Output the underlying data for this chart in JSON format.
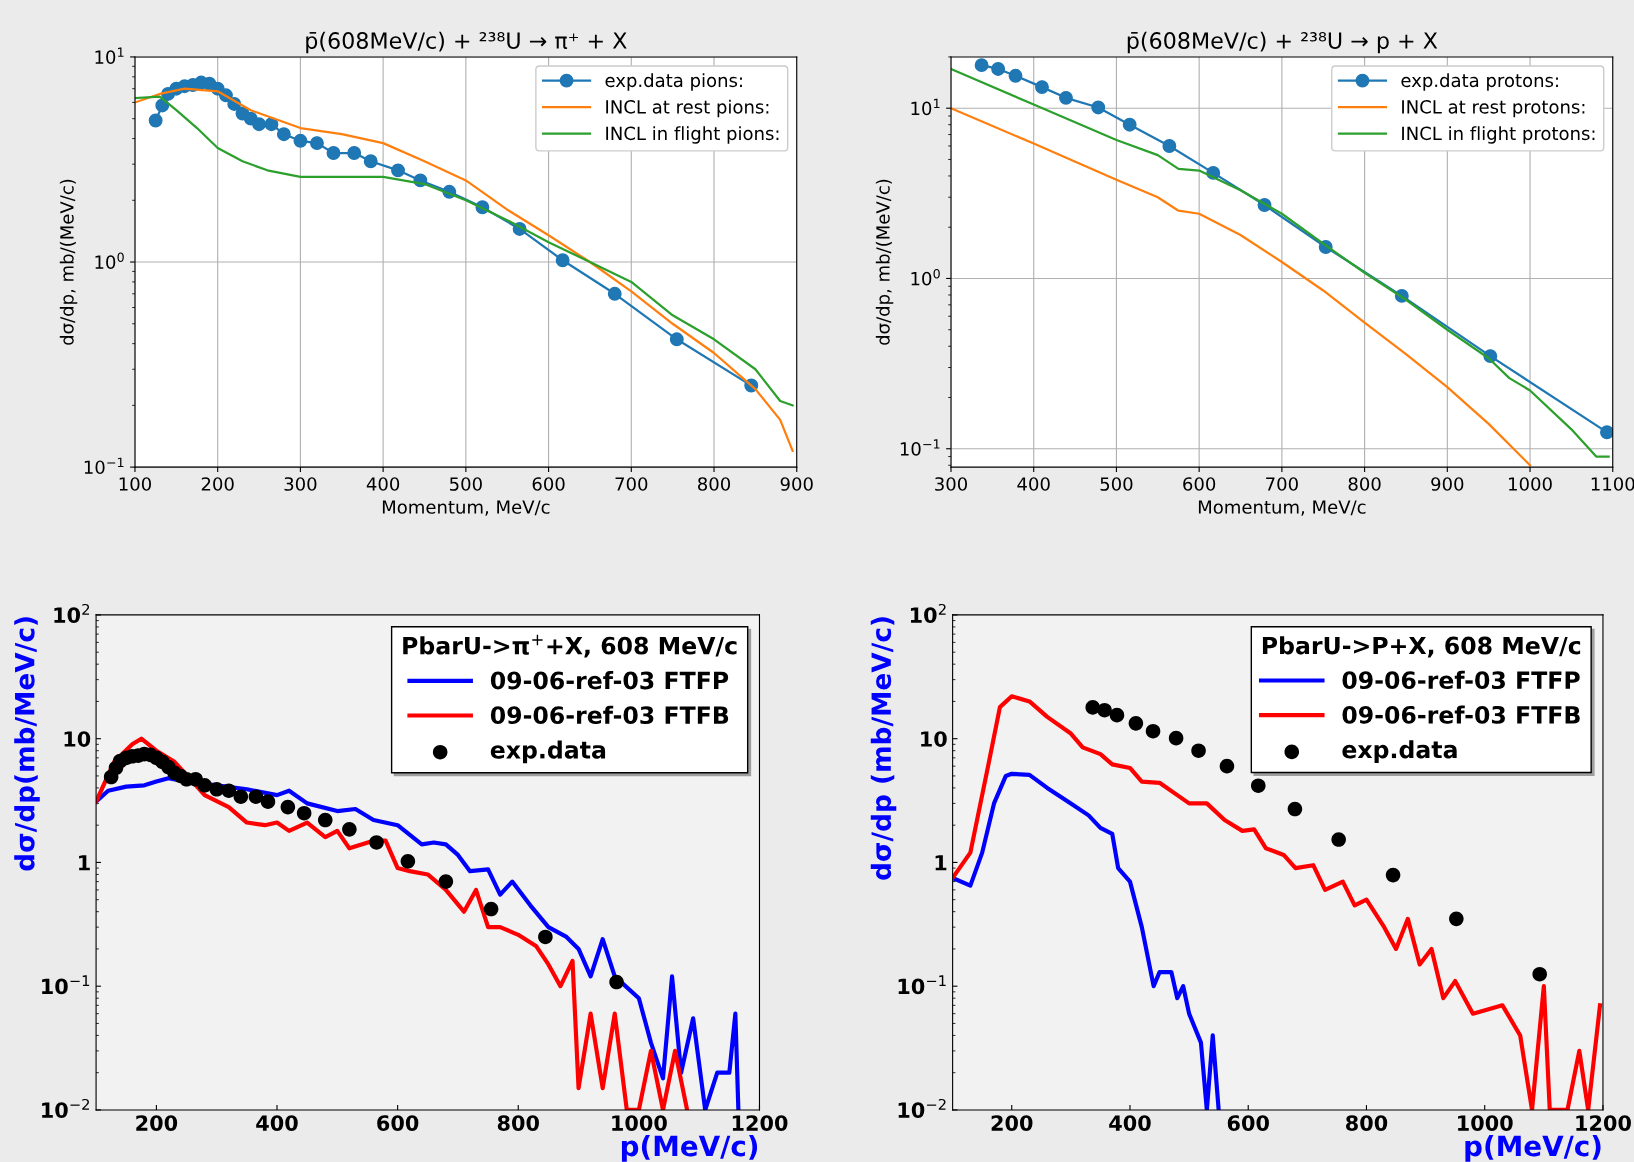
{
  "chart_data": [
    {
      "type": "line",
      "title": "p̄(608MeV/c) + ²³⁸U → π⁺ + X",
      "xlabel": "Momentum, MeV/c",
      "ylabel": "dσ/dp, mb/(MeV/c)",
      "log": true,
      "grid": true,
      "legend": "top right",
      "xlim": [
        100,
        900
      ],
      "xticks": [
        100,
        200,
        300,
        400,
        500,
        600,
        700,
        800,
        900
      ],
      "ylim": [
        0.1,
        10
      ],
      "yticks": [
        {
          "value": 0.1,
          "label": "10$^{−1}$"
        },
        {
          "value": 1,
          "label": "10$^{0}$"
        },
        {
          "value": 10,
          "label": "10$^{1}$"
        }
      ],
      "series": [
        {
          "name": "exp.data pions:",
          "color": "#1f77b4",
          "marker": "circle",
          "x": [
            125,
            133,
            140,
            150,
            160,
            170,
            180,
            190,
            200,
            210,
            220,
            230,
            240,
            250,
            265,
            280,
            300,
            320,
            340,
            365,
            385,
            418,
            445,
            480,
            520,
            565,
            617,
            680,
            755,
            845
          ],
          "values": [
            4.9,
            5.8,
            6.6,
            7.0,
            7.2,
            7.3,
            7.5,
            7.4,
            7.0,
            6.5,
            5.9,
            5.3,
            5.0,
            4.7,
            4.7,
            4.2,
            3.9,
            3.8,
            3.4,
            3.4,
            3.1,
            2.8,
            2.5,
            2.2,
            1.85,
            1.45,
            1.02,
            0.7,
            0.42,
            0.25
          ]
        },
        {
          "name": "INCL at rest pions:",
          "color": "#ff7f0e",
          "x": [
            100,
            130,
            160,
            200,
            240,
            300,
            350,
            400,
            450,
            500,
            550,
            600,
            650,
            700,
            750,
            800,
            850,
            880,
            895
          ],
          "values": [
            6.0,
            6.6,
            7.0,
            6.8,
            5.5,
            4.5,
            4.2,
            3.8,
            3.1,
            2.5,
            1.8,
            1.35,
            1.0,
            0.72,
            0.5,
            0.36,
            0.24,
            0.17,
            0.12
          ]
        },
        {
          "name": "INCL in flight pions:",
          "color": "#2ca02c",
          "x": [
            100,
            130,
            150,
            175,
            200,
            230,
            260,
            300,
            350,
            400,
            450,
            500,
            550,
            600,
            650,
            700,
            750,
            800,
            850,
            880,
            895
          ],
          "values": [
            6.3,
            6.4,
            5.5,
            4.5,
            3.6,
            3.1,
            2.8,
            2.6,
            2.6,
            2.6,
            2.4,
            2.0,
            1.6,
            1.25,
            1.0,
            0.8,
            0.55,
            0.42,
            0.3,
            0.21,
            0.2
          ]
        }
      ]
    },
    {
      "type": "line",
      "title": "p̄(608MeV/c) + ²³⁸U → p + X",
      "xlabel": "Momentum, MeV/c",
      "ylabel": "dσ/dp, mb/(MeV/c)",
      "log": true,
      "grid": true,
      "legend": "top right",
      "xlim": [
        300,
        1100
      ],
      "xticks": [
        300,
        400,
        500,
        600,
        700,
        800,
        900,
        1000,
        1100
      ],
      "ylim": [
        0.078,
        20
      ],
      "yticks": [
        {
          "value": 0.1,
          "label": "10$^{−1}$"
        },
        {
          "value": 1,
          "label": "10$^{0}$"
        },
        {
          "value": 10,
          "label": "10$^{1}$"
        }
      ],
      "series": [
        {
          "name": "exp.data protons:",
          "color": "#1f77b4",
          "marker": "circle",
          "x": [
            337,
            357,
            378,
            410,
            439,
            478,
            516,
            564,
            617,
            679,
            753,
            845,
            952,
            1093
          ],
          "values": [
            17.9,
            17.0,
            15.5,
            13.3,
            11.5,
            10.1,
            8.0,
            6.0,
            4.17,
            2.7,
            1.53,
            0.79,
            0.35,
            0.125
          ]
        },
        {
          "name": "INCL at rest protons:",
          "color": "#ff7f0e",
          "x": [
            300,
            400,
            500,
            550,
            575,
            600,
            650,
            700,
            750,
            800,
            850,
            900,
            950,
            1000
          ],
          "values": [
            10,
            6.2,
            3.8,
            3.0,
            2.5,
            2.4,
            1.8,
            1.25,
            0.85,
            0.55,
            0.36,
            0.23,
            0.14,
            0.08
          ]
        },
        {
          "name": "INCL in flight protons:",
          "color": "#2ca02c",
          "x": [
            300,
            400,
            500,
            550,
            575,
            600,
            650,
            700,
            750,
            800,
            850,
            900,
            950,
            975,
            1000,
            1050,
            1080,
            1095
          ],
          "values": [
            17,
            10.5,
            6.5,
            5.3,
            4.4,
            4.3,
            3.3,
            2.4,
            1.6,
            1.08,
            0.75,
            0.5,
            0.34,
            0.26,
            0.22,
            0.13,
            0.09,
            0.09
          ]
        }
      ]
    },
    {
      "type": "line",
      "xlabel": "p(MeV/c)",
      "ylabel": "dσ/dp(mb/MeV/c)",
      "legend_title": "PbarU->π$^{+}$+X, 608 MeV/c",
      "log": true,
      "legend": "top right",
      "xlim": [
        100,
        1200
      ],
      "xticks": [
        200,
        400,
        600,
        800,
        1000,
        1200
      ],
      "ylim": [
        0.01,
        100
      ],
      "yticks": [
        {
          "value": 0.01,
          "label": "10$^{−2}$"
        },
        {
          "value": 0.1,
          "label": "10$^{−1}$"
        },
        1,
        10,
        {
          "value": 100,
          "label": "10$^{2}$"
        }
      ],
      "series": [
        {
          "name": "09-06-ref-03 FTFP",
          "color": "#0000ff",
          "x": [
            100,
            120,
            150,
            180,
            200,
            220,
            250,
            300,
            350,
            400,
            420,
            450,
            500,
            530,
            560,
            600,
            640,
            660,
            680,
            700,
            720,
            750,
            770,
            790,
            820,
            850,
            880,
            900,
            920,
            940,
            960,
            1000,
            1020,
            1040,
            1055,
            1070,
            1090,
            1110,
            1130,
            1150,
            1160,
            1165
          ],
          "values": [
            3.1,
            3.8,
            4.1,
            4.2,
            4.5,
            4.8,
            4.5,
            4.2,
            3.9,
            3.5,
            3.8,
            3.0,
            2.6,
            2.7,
            2.2,
            2.0,
            1.4,
            1.45,
            1.4,
            1.15,
            0.85,
            0.88,
            0.55,
            0.7,
            0.45,
            0.3,
            0.25,
            0.2,
            0.12,
            0.24,
            0.12,
            0.08,
            0.035,
            0.018,
            0.12,
            0.02,
            0.055,
            0.01,
            0.02,
            0.02,
            0.06,
            0.01
          ]
        },
        {
          "name": "09-06-ref-03 FTFB",
          "color": "#ff0000",
          "x": [
            100,
            130,
            160,
            175,
            200,
            230,
            260,
            280,
            320,
            350,
            380,
            400,
            420,
            450,
            480,
            500,
            520,
            560,
            580,
            600,
            620,
            650,
            680,
            710,
            730,
            750,
            770,
            800,
            830,
            850,
            870,
            890,
            900,
            920,
            940,
            960,
            980,
            1000,
            1020,
            1040,
            1060,
            1080
          ],
          "values": [
            3.1,
            6.5,
            9,
            10,
            8,
            6.5,
            4.5,
            3.5,
            2.8,
            2.1,
            2.0,
            2.1,
            1.8,
            2.1,
            1.6,
            1.8,
            1.3,
            1.5,
            1.5,
            0.9,
            0.85,
            0.8,
            0.6,
            0.4,
            0.6,
            0.3,
            0.3,
            0.26,
            0.21,
            0.15,
            0.1,
            0.16,
            0.015,
            0.06,
            0.015,
            0.06,
            0.01,
            0.01,
            0.03,
            0.01,
            0.03,
            0.01
          ]
        },
        {
          "name": "exp.data",
          "type": "scatter",
          "marker": "circle",
          "color": "#000000",
          "x": [
            125,
            133,
            140,
            150,
            160,
            170,
            180,
            190,
            200,
            210,
            220,
            230,
            240,
            250,
            265,
            280,
            300,
            320,
            340,
            365,
            385,
            418,
            445,
            480,
            520,
            565,
            617,
            680,
            755,
            845,
            963
          ],
          "values": [
            4.9,
            5.8,
            6.6,
            7.0,
            7.2,
            7.3,
            7.5,
            7.4,
            7.0,
            6.5,
            5.9,
            5.3,
            5.0,
            4.7,
            4.7,
            4.2,
            3.9,
            3.8,
            3.4,
            3.4,
            3.1,
            2.8,
            2.5,
            2.2,
            1.85,
            1.45,
            1.02,
            0.7,
            0.42,
            0.25,
            0.108
          ]
        }
      ]
    },
    {
      "type": "line",
      "xlabel": "p(MeV/c)",
      "ylabel": "dσ/dp (mb/MeV/c)",
      "legend_title": "PbarU->P+X, 608 MeV/c",
      "log": true,
      "legend": "top right",
      "xlim": [
        100,
        1200
      ],
      "xticks": [
        200,
        400,
        600,
        800,
        1000,
        1200
      ],
      "ylim": [
        0.01,
        100
      ],
      "yticks": [
        {
          "value": 0.01,
          "label": "10$^{−2}$"
        },
        {
          "value": 0.1,
          "label": "10$^{−1}$"
        },
        1,
        10,
        {
          "value": 100,
          "label": "10$^{2}$"
        }
      ],
      "series": [
        {
          "name": "09-06-ref-03 FTFP",
          "color": "#0000ff",
          "x": [
            100,
            130,
            150,
            170,
            190,
            200,
            230,
            260,
            300,
            330,
            350,
            370,
            380,
            400,
            420,
            440,
            450,
            470,
            480,
            490,
            500,
            520,
            530,
            540,
            550
          ],
          "values": [
            0.75,
            0.65,
            1.2,
            3,
            5,
            5.2,
            5.1,
            4.0,
            3.0,
            2.4,
            1.9,
            1.7,
            0.9,
            0.7,
            0.3,
            0.1,
            0.13,
            0.13,
            0.08,
            0.1,
            0.06,
            0.035,
            0.01,
            0.04,
            0.01
          ]
        },
        {
          "name": "09-06-ref-03 FTFB",
          "color": "#ff0000",
          "x": [
            100,
            130,
            160,
            180,
            200,
            230,
            260,
            300,
            320,
            350,
            370,
            400,
            420,
            450,
            480,
            500,
            530,
            560,
            590,
            610,
            630,
            660,
            680,
            710,
            730,
            760,
            780,
            800,
            830,
            850,
            870,
            890,
            910,
            930,
            950,
            980,
            1030,
            1060,
            1080,
            1100,
            1110,
            1140,
            1160,
            1175,
            1195
          ],
          "values": [
            0.75,
            1.2,
            6,
            18,
            22,
            20,
            15,
            11,
            8.5,
            7.5,
            6.2,
            5.8,
            4.5,
            4.4,
            3.5,
            3.0,
            3.0,
            2.2,
            1.8,
            1.85,
            1.3,
            1.15,
            0.9,
            0.95,
            0.6,
            0.7,
            0.45,
            0.5,
            0.3,
            0.2,
            0.35,
            0.15,
            0.2,
            0.08,
            0.11,
            0.06,
            0.07,
            0.04,
            0.01,
            0.1,
            0.01,
            0.01,
            0.03,
            0.01,
            0.07
          ]
        },
        {
          "name": "exp.data",
          "type": "scatter",
          "marker": "circle",
          "color": "#000000",
          "x": [
            337,
            357,
            378,
            410,
            439,
            478,
            516,
            564,
            617,
            679,
            753,
            845,
            952,
            1093
          ],
          "values": [
            17.9,
            17.0,
            15.5,
            13.3,
            11.5,
            10.1,
            8.0,
            6.0,
            4.17,
            2.7,
            1.53,
            0.79,
            0.35,
            0.125
          ]
        }
      ]
    }
  ]
}
